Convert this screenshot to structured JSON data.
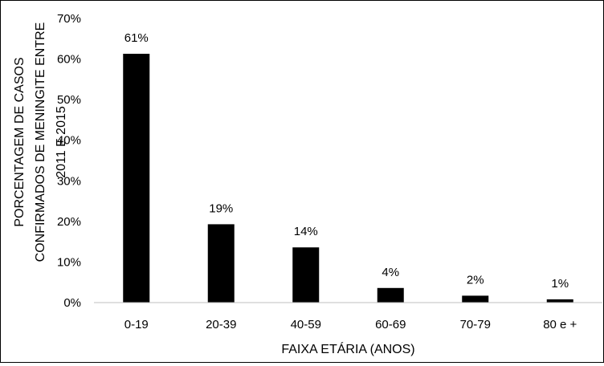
{
  "chart_data": {
    "type": "bar",
    "title": "",
    "xlabel": "FAIXA ETÁRIA (ANOS)",
    "ylabel_lines": [
      "PORCENTAGEM DE CASOS",
      "CONFIRMADOS DE MENINGITE ENTRE",
      "2011 E 2015"
    ],
    "categories": [
      "0-19",
      "20-39",
      "40-59",
      "60-69",
      "70-79",
      "80 e +"
    ],
    "values": [
      61.3,
      19.3,
      13.6,
      3.6,
      1.7,
      0.8
    ],
    "data_labels": [
      "61%",
      "19%",
      "14%",
      "4%",
      "2%",
      "1%"
    ],
    "yticks": [
      "0%",
      "10%",
      "20%",
      "30%",
      "40%",
      "50%",
      "60%",
      "70%"
    ],
    "ylim": [
      0,
      70
    ],
    "grid": false,
    "legend": "none",
    "bar_color": "#000000"
  }
}
